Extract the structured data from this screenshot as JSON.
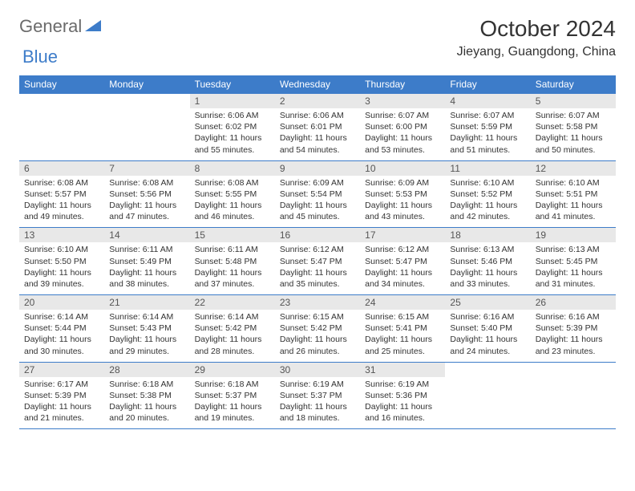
{
  "logo": {
    "text1": "General",
    "text2": "Blue"
  },
  "title": "October 2024",
  "location": "Jieyang, Guangdong, China",
  "colors": {
    "header_bg": "#3d7cc9",
    "header_text": "#ffffff",
    "daynum_bg": "#e8e8e8",
    "border": "#3d7cc9",
    "text": "#333333",
    "logo_gray": "#6b6b6b",
    "logo_blue": "#3d7cc9"
  },
  "day_names": [
    "Sunday",
    "Monday",
    "Tuesday",
    "Wednesday",
    "Thursday",
    "Friday",
    "Saturday"
  ],
  "weeks": [
    [
      null,
      null,
      {
        "n": "1",
        "sr": "6:06 AM",
        "ss": "6:02 PM",
        "dl": "11 hours and 55 minutes."
      },
      {
        "n": "2",
        "sr": "6:06 AM",
        "ss": "6:01 PM",
        "dl": "11 hours and 54 minutes."
      },
      {
        "n": "3",
        "sr": "6:07 AM",
        "ss": "6:00 PM",
        "dl": "11 hours and 53 minutes."
      },
      {
        "n": "4",
        "sr": "6:07 AM",
        "ss": "5:59 PM",
        "dl": "11 hours and 51 minutes."
      },
      {
        "n": "5",
        "sr": "6:07 AM",
        "ss": "5:58 PM",
        "dl": "11 hours and 50 minutes."
      }
    ],
    [
      {
        "n": "6",
        "sr": "6:08 AM",
        "ss": "5:57 PM",
        "dl": "11 hours and 49 minutes."
      },
      {
        "n": "7",
        "sr": "6:08 AM",
        "ss": "5:56 PM",
        "dl": "11 hours and 47 minutes."
      },
      {
        "n": "8",
        "sr": "6:08 AM",
        "ss": "5:55 PM",
        "dl": "11 hours and 46 minutes."
      },
      {
        "n": "9",
        "sr": "6:09 AM",
        "ss": "5:54 PM",
        "dl": "11 hours and 45 minutes."
      },
      {
        "n": "10",
        "sr": "6:09 AM",
        "ss": "5:53 PM",
        "dl": "11 hours and 43 minutes."
      },
      {
        "n": "11",
        "sr": "6:10 AM",
        "ss": "5:52 PM",
        "dl": "11 hours and 42 minutes."
      },
      {
        "n": "12",
        "sr": "6:10 AM",
        "ss": "5:51 PM",
        "dl": "11 hours and 41 minutes."
      }
    ],
    [
      {
        "n": "13",
        "sr": "6:10 AM",
        "ss": "5:50 PM",
        "dl": "11 hours and 39 minutes."
      },
      {
        "n": "14",
        "sr": "6:11 AM",
        "ss": "5:49 PM",
        "dl": "11 hours and 38 minutes."
      },
      {
        "n": "15",
        "sr": "6:11 AM",
        "ss": "5:48 PM",
        "dl": "11 hours and 37 minutes."
      },
      {
        "n": "16",
        "sr": "6:12 AM",
        "ss": "5:47 PM",
        "dl": "11 hours and 35 minutes."
      },
      {
        "n": "17",
        "sr": "6:12 AM",
        "ss": "5:47 PM",
        "dl": "11 hours and 34 minutes."
      },
      {
        "n": "18",
        "sr": "6:13 AM",
        "ss": "5:46 PM",
        "dl": "11 hours and 33 minutes."
      },
      {
        "n": "19",
        "sr": "6:13 AM",
        "ss": "5:45 PM",
        "dl": "11 hours and 31 minutes."
      }
    ],
    [
      {
        "n": "20",
        "sr": "6:14 AM",
        "ss": "5:44 PM",
        "dl": "11 hours and 30 minutes."
      },
      {
        "n": "21",
        "sr": "6:14 AM",
        "ss": "5:43 PM",
        "dl": "11 hours and 29 minutes."
      },
      {
        "n": "22",
        "sr": "6:14 AM",
        "ss": "5:42 PM",
        "dl": "11 hours and 28 minutes."
      },
      {
        "n": "23",
        "sr": "6:15 AM",
        "ss": "5:42 PM",
        "dl": "11 hours and 26 minutes."
      },
      {
        "n": "24",
        "sr": "6:15 AM",
        "ss": "5:41 PM",
        "dl": "11 hours and 25 minutes."
      },
      {
        "n": "25",
        "sr": "6:16 AM",
        "ss": "5:40 PM",
        "dl": "11 hours and 24 minutes."
      },
      {
        "n": "26",
        "sr": "6:16 AM",
        "ss": "5:39 PM",
        "dl": "11 hours and 23 minutes."
      }
    ],
    [
      {
        "n": "27",
        "sr": "6:17 AM",
        "ss": "5:39 PM",
        "dl": "11 hours and 21 minutes."
      },
      {
        "n": "28",
        "sr": "6:18 AM",
        "ss": "5:38 PM",
        "dl": "11 hours and 20 minutes."
      },
      {
        "n": "29",
        "sr": "6:18 AM",
        "ss": "5:37 PM",
        "dl": "11 hours and 19 minutes."
      },
      {
        "n": "30",
        "sr": "6:19 AM",
        "ss": "5:37 PM",
        "dl": "11 hours and 18 minutes."
      },
      {
        "n": "31",
        "sr": "6:19 AM",
        "ss": "5:36 PM",
        "dl": "11 hours and 16 minutes."
      },
      null,
      null
    ]
  ],
  "labels": {
    "sunrise": "Sunrise:",
    "sunset": "Sunset:",
    "daylight": "Daylight:"
  }
}
